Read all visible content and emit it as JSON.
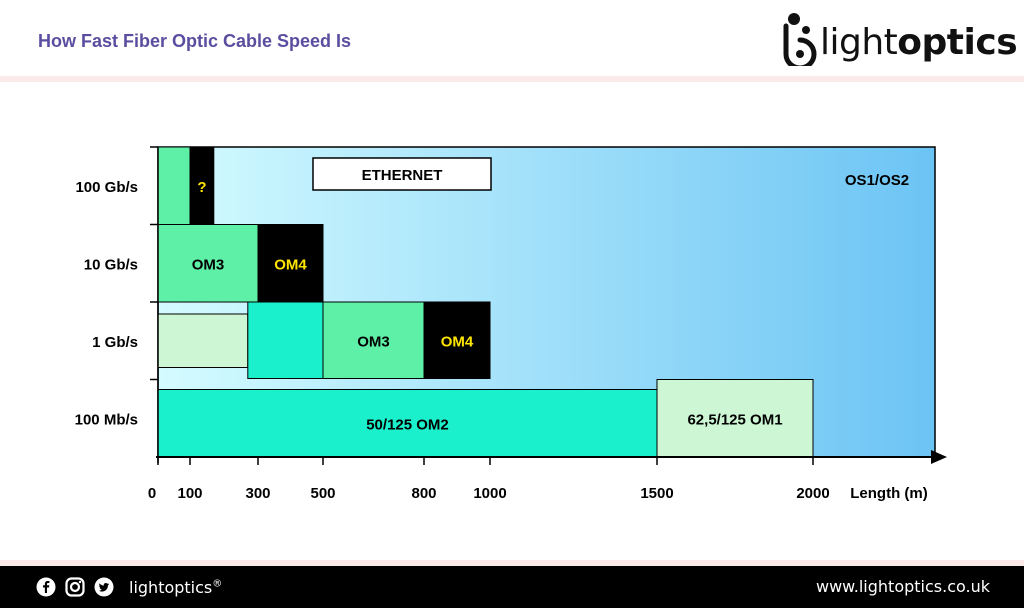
{
  "header": {
    "title": "How Fast Fiber Optic Cable Speed Is"
  },
  "brand": {
    "name_light": "light",
    "name_bold": "optics",
    "logo_icon": "lightoptics-logo-icon"
  },
  "footer": {
    "handle": "lightoptics",
    "registered": "®",
    "website": "www.lightoptics.co.uk",
    "icons": [
      "facebook-icon",
      "instagram-icon",
      "twitter-icon"
    ]
  },
  "colors": {
    "title": "#5a4ea0",
    "mint": "#5ef0a6",
    "aqua": "#1af0cc",
    "pale_green": "#cdf7d4",
    "black_cell": "#000000",
    "om4_text": "#ffe600",
    "bg_gradient_start": "#d4fbff",
    "bg_gradient_end": "#6cc4f4"
  },
  "chart_data": {
    "type": "bar",
    "xlabel": "Length (m)",
    "x_ticks": [
      0,
      100,
      300,
      500,
      800,
      1000,
      1500,
      2000
    ],
    "x_tick_labels": [
      "0",
      "100",
      "300",
      "500",
      "800",
      "1000",
      "1500",
      "2000"
    ],
    "xlim": [
      0,
      2350
    ],
    "categories": [
      "100 Mb/s",
      "1 Gb/s",
      "10 Gb/s",
      "100 Gb/s"
    ],
    "background_label": "OS1/OS2",
    "legend_box": "ETHERNET",
    "segments": [
      {
        "label": "",
        "speed": "100 Gb/s",
        "x_start": 0,
        "x_end": 100,
        "style": "mint"
      },
      {
        "label": "?",
        "speed": "100 Gb/s",
        "x_start": 100,
        "x_end": 170,
        "style": "black"
      },
      {
        "label": "OM3",
        "speed": "10 Gb/s",
        "x_start": 0,
        "x_end": 300,
        "style": "mint"
      },
      {
        "label": "OM4",
        "speed": "10 Gb/s",
        "x_start": 300,
        "x_end": 500,
        "style": "black"
      },
      {
        "label": "",
        "speed": "1 Gb/s",
        "x_start": 0,
        "x_end": 270,
        "style": "pale"
      },
      {
        "label": "",
        "speed": "1 Gb/s",
        "x_start": 270,
        "x_end": 500,
        "style": "aqua"
      },
      {
        "label": "OM3",
        "speed": "1 Gb/s",
        "x_start": 500,
        "x_end": 800,
        "style": "mint"
      },
      {
        "label": "OM4",
        "speed": "1 Gb/s",
        "x_start": 800,
        "x_end": 1000,
        "style": "black"
      },
      {
        "label": "50/125 OM2",
        "speed": "100 Mb/s",
        "x_start": 0,
        "x_end": 1500,
        "style": "aqua"
      },
      {
        "label": "62,5/125 OM1",
        "speed": "100 Mb/s",
        "x_start": 1500,
        "x_end": 2000,
        "style": "pale"
      }
    ]
  }
}
